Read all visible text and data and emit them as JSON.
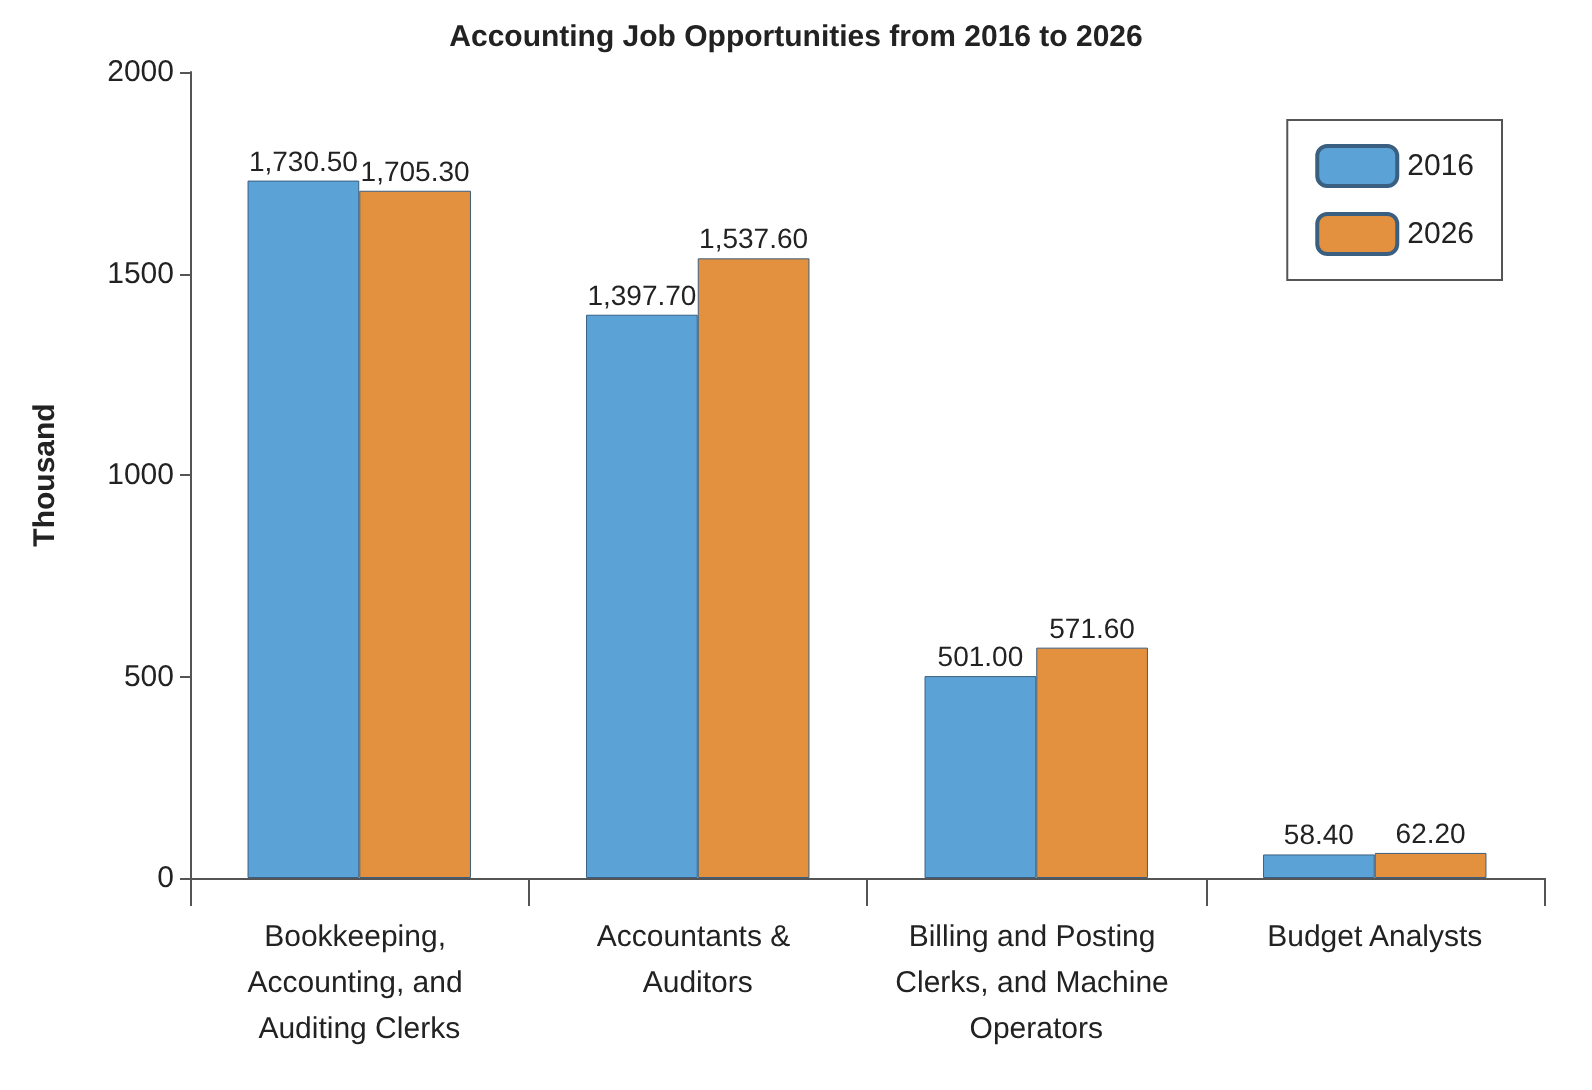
{
  "chart_data": {
    "type": "bar",
    "title": "Accounting Job Opportunities from 2016 to 2026",
    "ylabel": "Thousand",
    "categories": [
      "Bookkeeping, Accounting, and Auditing Clerks",
      "Accountants & Auditors",
      "Billing and Posting Clerks, and Machine Operators",
      "Budget Analysts"
    ],
    "series": [
      {
        "name": "2016",
        "color": "#5ba3d6",
        "values": [
          1730.5,
          1397.7,
          501.0,
          58.4
        ],
        "value_labels": [
          "1,730.50",
          "1,397.70",
          "501.00",
          "58.40"
        ]
      },
      {
        "name": "2026",
        "color": "#e3913e",
        "values": [
          1705.3,
          1537.6,
          571.6,
          62.2
        ],
        "value_labels": [
          "1,705.30",
          "1,537.60",
          "571.60",
          "62.20"
        ]
      }
    ],
    "ylim": [
      0,
      2000
    ],
    "yticks": [
      0,
      500,
      1000,
      1500,
      2000
    ],
    "grid": false,
    "legend": "top right"
  }
}
